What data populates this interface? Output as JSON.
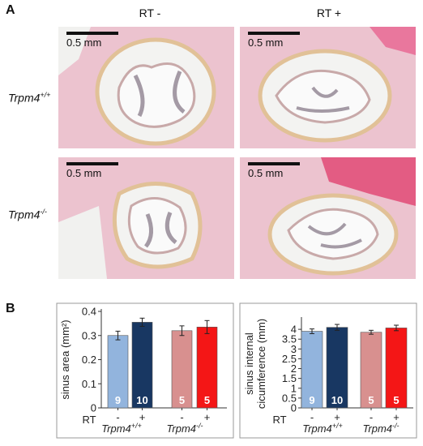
{
  "panel_a": {
    "label": "A",
    "columns": [
      "RT -",
      "RT +"
    ],
    "rows": [
      {
        "base": "Trpm4",
        "sup": "+/+"
      },
      {
        "base": "Trpm4",
        "sup": "-/-"
      }
    ],
    "scale_bar": "0.5 mm"
  },
  "panel_b": {
    "label": "B",
    "rt_label": "RT"
  },
  "colors": {
    "wt_minus": "#92b4dd",
    "wt_plus": "#183762",
    "ko_minus": "#d8908f",
    "ko_plus": "#f41616",
    "tissue": "#ecc3cf",
    "lumen": "#f4f4f2"
  },
  "chart_data": [
    {
      "type": "bar",
      "ylabel": "sinus area (mm²)",
      "ylim": [
        0,
        0.4
      ],
      "yticks": [
        "0",
        "0.1",
        "0.2",
        "0.3",
        "0.4"
      ],
      "xlabel": "RT",
      "groups": [
        {
          "name": "Trpm4",
          "sup": "+/+",
          "signs": [
            "-",
            "+"
          ]
        },
        {
          "name": "Trpm4",
          "sup": "-/-",
          "signs": [
            "-",
            "+"
          ]
        }
      ],
      "bars": [
        {
          "value": 0.3,
          "err": 0.018,
          "n": "9",
          "color": "#92b4dd"
        },
        {
          "value": 0.355,
          "err": 0.017,
          "n": "10",
          "color": "#183762"
        },
        {
          "value": 0.32,
          "err": 0.02,
          "n": "5",
          "color": "#d8908f"
        },
        {
          "value": 0.335,
          "err": 0.027,
          "n": "5",
          "color": "#f41616"
        }
      ]
    },
    {
      "type": "bar",
      "ylabel_lines": [
        "sinus internal",
        "cicumference (mm)"
      ],
      "ylim": [
        0,
        4.5
      ],
      "yticks": [
        "0",
        "0.5",
        "1",
        "1.5",
        "2",
        "2.5",
        "3",
        "3.5",
        "4"
      ],
      "xlabel": "RT",
      "groups": [
        {
          "name": "Trpm4",
          "sup": "+/+",
          "signs": [
            "-",
            "+"
          ]
        },
        {
          "name": "Trpm4",
          "sup": "-/-",
          "signs": [
            "-",
            "+"
          ]
        }
      ],
      "bars": [
        {
          "value": 3.9,
          "err": 0.12,
          "n": "9",
          "color": "#92b4dd"
        },
        {
          "value": 4.1,
          "err": 0.15,
          "n": "10",
          "color": "#183762"
        },
        {
          "value": 3.85,
          "err": 0.1,
          "n": "5",
          "color": "#d8908f"
        },
        {
          "value": 4.07,
          "err": 0.14,
          "n": "5",
          "color": "#f41616"
        }
      ]
    }
  ]
}
